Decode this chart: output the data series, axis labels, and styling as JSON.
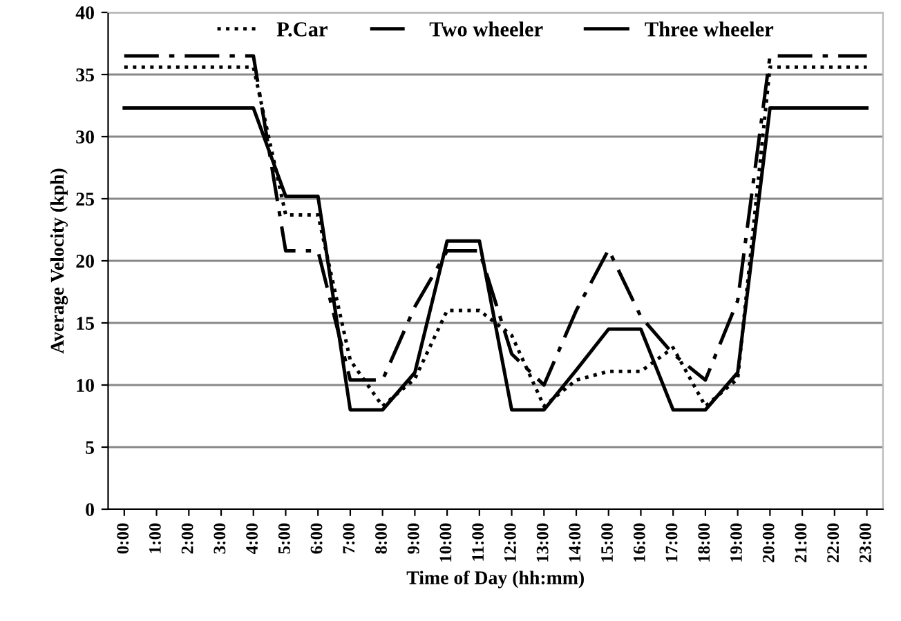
{
  "chart_data": {
    "type": "line",
    "xlabel": "Time of Day (hh:mm)",
    "ylabel": "Average Velocity (kph)",
    "categories": [
      "0:00",
      "1:00",
      "2:00",
      "3:00",
      "4:00",
      "5:00",
      "6:00",
      "7:00",
      "8:00",
      "9:00",
      "10:00",
      "11:00",
      "12:00",
      "13:00",
      "14:00",
      "15:00",
      "16:00",
      "17:00",
      "18:00",
      "19:00",
      "20:00",
      "21:00",
      "22:00",
      "23:00"
    ],
    "ylim": [
      0,
      40
    ],
    "yticks": [
      0,
      5,
      10,
      15,
      20,
      25,
      30,
      35,
      40
    ],
    "grid": "y",
    "legend": "top",
    "marker": "none",
    "series": [
      {
        "name": "P.Car",
        "color": "#000000",
        "line_style": "dotted",
        "values": [
          35.6,
          35.6,
          35.6,
          35.6,
          35.6,
          23.7,
          23.7,
          12,
          8.3,
          10.5,
          16,
          16,
          14,
          8.3,
          10.4,
          11.1,
          11.1,
          13,
          8.3,
          10.5,
          35.6,
          35.6,
          35.6,
          35.6
        ]
      },
      {
        "name": "Two wheeler",
        "color": "#000000",
        "line_style": "dashdot",
        "values": [
          36.5,
          36.5,
          36.5,
          36.5,
          36.5,
          20.8,
          20.8,
          10.4,
          10.4,
          16.3,
          20.8,
          20.8,
          12.5,
          10,
          16,
          20.9,
          15.5,
          12.5,
          10.4,
          16.8,
          36.5,
          36.5,
          36.5,
          36.5
        ]
      },
      {
        "name": "Three wheeler",
        "color": "#000000",
        "line_style": "solid",
        "values": [
          32.3,
          32.3,
          32.3,
          32.3,
          32.3,
          25.2,
          25.2,
          8,
          8,
          11,
          21.6,
          21.6,
          8,
          8,
          11.2,
          14.5,
          14.5,
          8,
          8,
          11,
          32.3,
          32.3,
          32.3,
          32.3
        ]
      }
    ]
  }
}
